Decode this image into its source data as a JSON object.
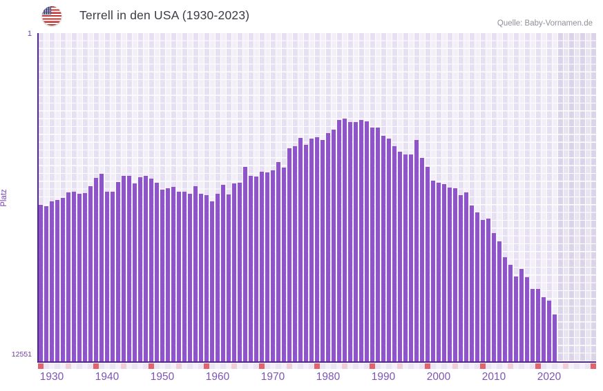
{
  "header": {
    "title": "Terrell in den USA (1930-2023)",
    "flag_icon": "us-flag-icon",
    "source": "Quelle: Baby-Vornamen.de"
  },
  "chart_data": {
    "type": "bar",
    "title": "Terrell in den USA (1930-2023)",
    "ylabel": "Platz",
    "xlabel": "",
    "y_axis": {
      "top_label": "1",
      "bottom_label": "12551",
      "min": 1,
      "max": 12551,
      "inverted": true,
      "scale": "rank-down"
    },
    "x_tick_labels": [
      "1930",
      "1940",
      "1950",
      "1960",
      "1970",
      "1980",
      "1990",
      "2000",
      "2010",
      "2020"
    ],
    "x_cells": {
      "start": 1928,
      "end": 2028
    },
    "no_data_from_year": 2022,
    "legend": "none",
    "grid": true,
    "bars": {
      "years": [
        1928,
        1929,
        1930,
        1931,
        1932,
        1933,
        1934,
        1935,
        1936,
        1937,
        1938,
        1939,
        1940,
        1941,
        1942,
        1943,
        1944,
        1945,
        1946,
        1947,
        1948,
        1949,
        1950,
        1951,
        1952,
        1953,
        1954,
        1955,
        1956,
        1957,
        1958,
        1959,
        1960,
        1961,
        1962,
        1963,
        1964,
        1965,
        1966,
        1967,
        1968,
        1969,
        1970,
        1971,
        1972,
        1973,
        1974,
        1975,
        1976,
        1977,
        1978,
        1979,
        1980,
        1981,
        1982,
        1983,
        1984,
        1985,
        1986,
        1987,
        1988,
        1989,
        1990,
        1991,
        1992,
        1993,
        1994,
        1995,
        1996,
        1997,
        1998,
        1999,
        2000,
        2001,
        2002,
        2003,
        2004,
        2005,
        2006,
        2007,
        2008,
        2009,
        2010,
        2011,
        2012,
        2013,
        2014,
        2015,
        2016,
        2017,
        2018,
        2019,
        2020,
        2021
      ],
      "ranks": [
        6570,
        6630,
        6445,
        6375,
        6305,
        6085,
        6070,
        6130,
        6110,
        5845,
        5530,
        5380,
        6060,
        6060,
        5690,
        5445,
        5470,
        5735,
        5520,
        5445,
        5555,
        5715,
        5995,
        5920,
        5890,
        6070,
        6070,
        6150,
        5865,
        6150,
        6185,
        6440,
        6150,
        5805,
        6175,
        5750,
        5715,
        5105,
        5450,
        5495,
        5290,
        5335,
        5250,
        4940,
        5135,
        4395,
        4325,
        4000,
        4280,
        4035,
        3970,
        4085,
        3830,
        3700,
        3330,
        3270,
        3400,
        3400,
        3315,
        3375,
        3600,
        3600,
        3920,
        4045,
        4325,
        4525,
        4630,
        4630,
        4085,
        4765,
        5125,
        5645,
        5715,
        5780,
        5910,
        5935,
        6200,
        6085,
        6585,
        6850,
        7150,
        7080,
        7635,
        7960,
        8570,
        8860,
        9300,
        9015,
        9345,
        9770,
        9770,
        10095,
        10225,
        10755
      ]
    },
    "decade_strip": {
      "strong_years": [
        1928,
        1938,
        1948,
        1958,
        1968,
        1978,
        1988,
        1998,
        2008,
        2018,
        2028
      ],
      "soft_years": [
        1933,
        1943,
        1953,
        1963,
        1973,
        1983,
        1993,
        2003,
        2013,
        2023
      ]
    },
    "colors": {
      "bar": "#8d55c7",
      "axis": "#53278a",
      "tick_text": "#7e54b5",
      "strip_strong": "#e2636d",
      "strip_soft": "#f2ccd6",
      "strip_even": "#f4f0f9",
      "strip_odd": "#ebe5f3"
    }
  }
}
